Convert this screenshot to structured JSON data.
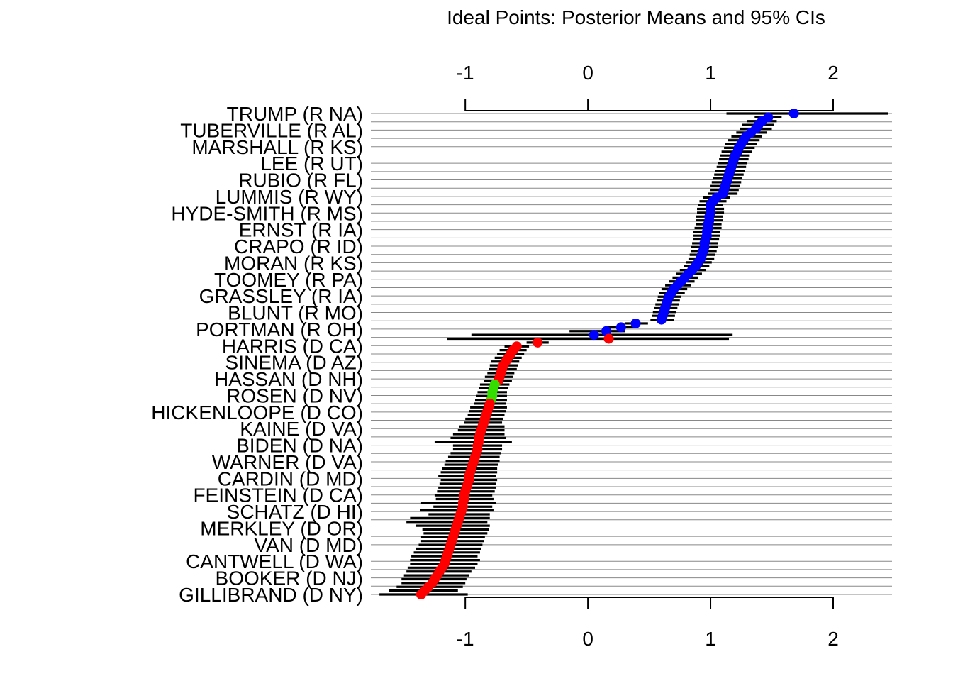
{
  "chart_data": {
    "type": "scatter",
    "title": "Ideal Points: Posterior Means and 95% CIs",
    "xlabel": "",
    "ylabel": "",
    "xlim": [
      -1.77,
      2.48
    ],
    "xticks": [
      -1,
      0,
      1,
      2
    ],
    "tick_labels": [
      "-1",
      "0",
      "1",
      "2"
    ],
    "axes": [
      "top",
      "bottom"
    ],
    "grid": "horizontal reference lines at every row",
    "row_labels": [
      "TRUMP (R NA)",
      "TUBERVILLE (R AL)",
      "MARSHALL (R KS)",
      "LEE (R UT)",
      "RUBIO (R FL)",
      "LUMMIS (R WY)",
      "HYDE-SMITH (R MS)",
      "ERNST (R IA)",
      "CRAPO (R ID)",
      "MORAN (R KS)",
      "TOOMEY (R PA)",
      "GRASSLEY (R IA)",
      "BLUNT (R MO)",
      "PORTMAN (R OH)",
      "HARRIS (D CA)",
      "SINEMA (D AZ)",
      "HASSAN (D NH)",
      "ROSEN (D NV)",
      "HICKENLOOPE (D CO)",
      "KAINE (D VA)",
      "BIDEN (D NA)",
      "WARNER (D VA)",
      "CARDIN (D MD)",
      "FEINSTEIN (D CA)",
      "SCHATZ (D HI)",
      "MERKLEY (D OR)",
      "VAN (D MD)",
      "CANTWELL (D WA)",
      "BOOKER (D NJ)",
      "GILLIBRAND (D NY)"
    ],
    "series": [
      {
        "name": "",
        "color": "#0000ff",
        "means": [
          1.68,
          1.47,
          1.42,
          1.39,
          1.37,
          1.33,
          1.29,
          1.27,
          1.25,
          1.23,
          1.22,
          1.2,
          1.19,
          1.18,
          1.17,
          1.16,
          1.15,
          1.14,
          1.13,
          1.12,
          1.11,
          1.1,
          1.05,
          1.02,
          1.0,
          1.0,
          1.0,
          0.99,
          0.99,
          0.98,
          0.98,
          0.97,
          0.97,
          0.96,
          0.95,
          0.95,
          0.94,
          0.93,
          0.92,
          0.9,
          0.88,
          0.85,
          0.82,
          0.79,
          0.76,
          0.73,
          0.7,
          0.68,
          0.66,
          0.65,
          0.64,
          0.63,
          0.62,
          0.61,
          0.6,
          0.39,
          0.27,
          0.15,
          0.05
        ],
        "lower": [
          1.13,
          1.36,
          1.3,
          1.26,
          1.24,
          1.21,
          1.17,
          1.14,
          1.12,
          1.11,
          1.09,
          1.08,
          1.07,
          1.06,
          1.05,
          1.04,
          1.03,
          1.02,
          1.01,
          1.0,
          1.0,
          0.98,
          0.94,
          0.91,
          0.9,
          0.89,
          0.89,
          0.88,
          0.88,
          0.88,
          0.87,
          0.86,
          0.86,
          0.86,
          0.85,
          0.84,
          0.84,
          0.83,
          0.82,
          0.8,
          0.78,
          0.75,
          0.72,
          0.69,
          0.66,
          0.63,
          0.6,
          0.58,
          0.57,
          0.56,
          0.55,
          0.54,
          0.53,
          0.52,
          0.51,
          0.3,
          0.16,
          -0.15,
          -0.95
        ],
        "upper": [
          2.45,
          1.58,
          1.54,
          1.52,
          1.5,
          1.46,
          1.42,
          1.4,
          1.38,
          1.36,
          1.34,
          1.32,
          1.31,
          1.3,
          1.29,
          1.28,
          1.27,
          1.26,
          1.25,
          1.24,
          1.23,
          1.22,
          1.16,
          1.13,
          1.1,
          1.11,
          1.11,
          1.1,
          1.1,
          1.09,
          1.09,
          1.08,
          1.08,
          1.07,
          1.06,
          1.06,
          1.05,
          1.04,
          1.03,
          1.01,
          0.99,
          0.96,
          0.93,
          0.9,
          0.87,
          0.84,
          0.81,
          0.79,
          0.76,
          0.75,
          0.74,
          0.73,
          0.72,
          0.71,
          0.7,
          0.49,
          0.38,
          0.3,
          1.18
        ]
      },
      {
        "name": "",
        "color": "#ff0000",
        "means": [
          0.17,
          -0.41,
          -0.58,
          -0.61,
          -0.63,
          -0.65,
          -0.67,
          -0.69,
          -0.7,
          -0.71,
          -0.72,
          -0.73,
          -0.8,
          -0.81,
          -0.82,
          -0.83,
          -0.84,
          -0.85,
          -0.86,
          -0.87,
          -0.88,
          -0.89,
          -0.89,
          -0.9,
          -0.9,
          -0.91,
          -0.92,
          -0.93,
          -0.94,
          -0.95,
          -0.96,
          -0.97,
          -0.97,
          -0.98,
          -0.99,
          -1.0,
          -1.01,
          -1.01,
          -1.02,
          -1.02,
          -1.03,
          -1.04,
          -1.05,
          -1.06,
          -1.07,
          -1.08,
          -1.09,
          -1.1,
          -1.11,
          -1.12,
          -1.13,
          -1.14,
          -1.15,
          -1.16,
          -1.17,
          -1.19,
          -1.21,
          -1.23,
          -1.25,
          -1.27,
          -1.3,
          -1.33,
          -1.36
        ],
        "lower": [
          -1.15,
          -0.5,
          -0.68,
          -0.72,
          -0.74,
          -0.76,
          -0.79,
          -0.8,
          -0.81,
          -0.82,
          -0.84,
          -0.85,
          -0.93,
          -0.96,
          -0.97,
          -0.98,
          -1.0,
          -1.01,
          -1.05,
          -1.06,
          -1.1,
          -1.12,
          -1.25,
          -1.1,
          -1.1,
          -1.12,
          -1.14,
          -1.16,
          -1.17,
          -1.19,
          -1.2,
          -1.22,
          -1.2,
          -1.21,
          -1.22,
          -1.23,
          -1.25,
          -1.24,
          -1.36,
          -1.26,
          -1.37,
          -1.3,
          -1.45,
          -1.48,
          -1.4,
          -1.35,
          -1.34,
          -1.36,
          -1.36,
          -1.38,
          -1.4,
          -1.42,
          -1.44,
          -1.45,
          -1.45,
          -1.47,
          -1.48,
          -1.5,
          -1.52,
          -1.52,
          -1.56,
          -1.62,
          -1.7
        ],
        "upper": [
          1.15,
          -0.32,
          -0.48,
          -0.5,
          -0.52,
          -0.54,
          -0.56,
          -0.57,
          -0.58,
          -0.6,
          -0.61,
          -0.62,
          -0.67,
          -0.66,
          -0.67,
          -0.68,
          -0.69,
          -0.7,
          -0.68,
          -0.68,
          -0.68,
          -0.67,
          -0.62,
          -0.7,
          -0.7,
          -0.71,
          -0.72,
          -0.72,
          -0.73,
          -0.74,
          -0.74,
          -0.75,
          -0.74,
          -0.75,
          -0.75,
          -0.76,
          -0.78,
          -0.77,
          -0.75,
          -0.78,
          -0.77,
          -0.8,
          -0.8,
          -0.82,
          -0.8,
          -0.81,
          -0.82,
          -0.84,
          -0.85,
          -0.86,
          -0.87,
          -0.88,
          -0.9,
          -0.88,
          -0.9,
          -0.92,
          -0.95,
          -0.97,
          -0.99,
          -1.0,
          -1.02,
          -1.06,
          -0.98
        ]
      },
      {
        "name": "",
        "color": "#33dd00",
        "means": [
          -0.76,
          -0.77,
          -0.78,
          -0.78,
          -0.79
        ],
        "lower": [
          -0.88,
          -0.89,
          -0.9,
          -0.91,
          -0.92
        ],
        "upper": [
          -0.64,
          -0.65,
          -0.66,
          -0.66,
          -0.66
        ]
      }
    ]
  }
}
